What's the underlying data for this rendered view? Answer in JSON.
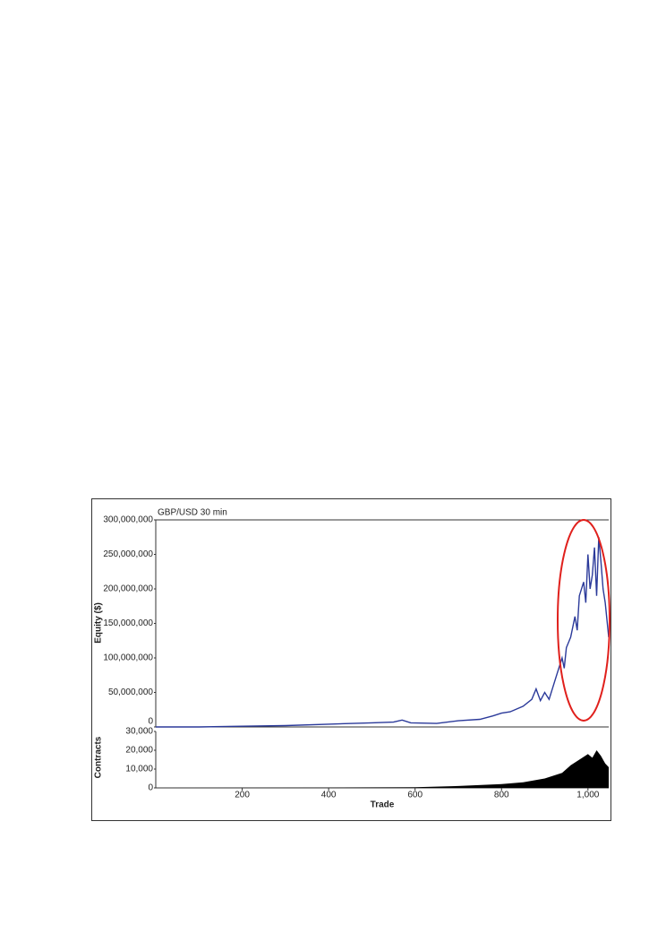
{
  "chart_data": [
    {
      "type": "line",
      "title": "GBP/USD 30 min",
      "ylabel": "Equity ($)",
      "xlim": [
        0,
        1048
      ],
      "ylim": [
        0,
        300000000
      ],
      "yticks": [
        0,
        {
          "value": 50000000,
          "label": "50,000,000"
        },
        {
          "value": 100000000,
          "label": "100,000,000"
        },
        {
          "value": 150000000,
          "label": "150,000,000"
        },
        {
          "value": 200000000,
          "label": "200,000,000"
        },
        {
          "value": 250000000,
          "label": "250,000,000"
        },
        {
          "value": 300000000,
          "label": "300,000,000"
        }
      ],
      "series": [
        {
          "color": "#2b3a9a",
          "x": [
            0,
            100,
            200,
            300,
            400,
            500,
            550,
            570,
            590,
            650,
            700,
            750,
            780,
            800,
            820,
            850,
            870,
            880,
            890,
            900,
            910,
            920,
            930,
            940,
            945,
            950,
            960,
            970,
            975,
            980,
            990,
            995,
            1000,
            1005,
            1010,
            1015,
            1020,
            1025,
            1030,
            1035,
            1040,
            1048
          ],
          "values": [
            0,
            0,
            1000000,
            2000000,
            4000000,
            6000000,
            7000000,
            10000000,
            6000000,
            5000000,
            9000000,
            11000000,
            16000000,
            20000000,
            22000000,
            30000000,
            40000000,
            55000000,
            38000000,
            50000000,
            40000000,
            60000000,
            80000000,
            100000000,
            85000000,
            115000000,
            130000000,
            160000000,
            140000000,
            190000000,
            210000000,
            180000000,
            250000000,
            200000000,
            220000000,
            260000000,
            190000000,
            275000000,
            240000000,
            200000000,
            180000000,
            130000000
          ]
        }
      ]
    },
    {
      "type": "area",
      "ylabel": "Contracts",
      "xlabel": "Trade",
      "xlim": [
        0,
        1048
      ],
      "ylim": [
        0,
        30000
      ],
      "xticks": [
        200,
        400,
        600,
        800,
        {
          "value": 1000,
          "label": "1,000"
        }
      ],
      "yticks": [
        0,
        {
          "value": 10000,
          "label": "10,000"
        },
        {
          "value": 20000,
          "label": "20,000"
        },
        {
          "value": 30000,
          "label": "30,000"
        }
      ],
      "series": [
        {
          "color": "#000000",
          "x": [
            0,
            400,
            600,
            700,
            800,
            850,
            900,
            940,
            960,
            980,
            1000,
            1010,
            1020,
            1030,
            1040,
            1048
          ],
          "values": [
            0,
            200,
            400,
            1000,
            2000,
            3000,
            5000,
            8000,
            12000,
            15000,
            18000,
            16000,
            20000,
            17000,
            13000,
            11000
          ]
        }
      ]
    }
  ]
}
